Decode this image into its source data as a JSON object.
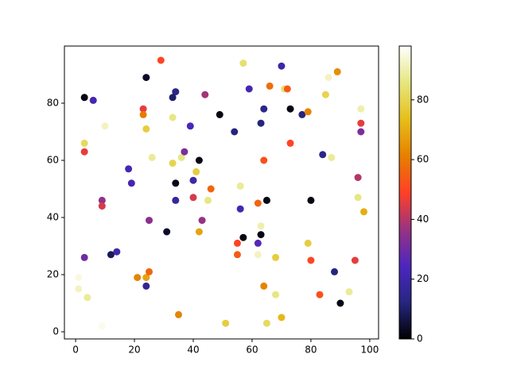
{
  "chart_data": {
    "type": "scatter",
    "x": [
      3,
      6,
      10,
      3,
      3,
      9,
      9,
      3,
      1,
      1,
      4,
      9,
      12,
      14,
      18,
      19,
      24,
      29,
      23,
      23,
      24,
      26,
      25,
      21,
      24,
      25,
      24,
      31,
      34,
      33,
      33,
      33,
      36,
      37,
      34,
      34,
      39,
      44,
      42,
      41,
      40,
      40,
      45,
      46,
      43,
      42,
      35,
      51,
      49,
      54,
      57,
      59,
      56,
      56,
      55,
      55,
      57,
      63,
      62,
      63,
      62,
      62,
      65,
      64,
      64,
      63,
      64,
      66,
      70,
      71,
      72,
      73,
      73,
      77,
      79,
      68,
      68,
      65,
      70,
      79,
      80,
      80,
      84,
      86,
      85,
      87,
      89,
      88,
      83,
      90,
      93,
      96,
      96,
      97,
      97,
      97,
      98,
      95
    ],
    "y": [
      82,
      81,
      72,
      66,
      63,
      46,
      44,
      26,
      19,
      15,
      12,
      2,
      27,
      28,
      57,
      52,
      89,
      95,
      78,
      76,
      71,
      61,
      39,
      19,
      19,
      21,
      16,
      35,
      84,
      82,
      75,
      59,
      61,
      63,
      52,
      46,
      72,
      83,
      60,
      56,
      53,
      47,
      46,
      50,
      39,
      35,
      6,
      3,
      76,
      70,
      94,
      85,
      51,
      43,
      31,
      27,
      33,
      34,
      45,
      37,
      27,
      31,
      46,
      60,
      16,
      73,
      78,
      86,
      93,
      85,
      85,
      78,
      66,
      76,
      77,
      26,
      13,
      3,
      5,
      31,
      46,
      25,
      62,
      89,
      83,
      61,
      91,
      21,
      13,
      10,
      14,
      54,
      47,
      73,
      70,
      78,
      42,
      25
    ],
    "c": [
      2,
      22,
      92,
      82,
      46,
      36,
      44,
      30,
      95,
      92,
      88,
      96,
      8,
      20,
      22,
      22,
      4,
      50,
      46,
      60,
      78,
      88,
      34,
      62,
      68,
      56,
      16,
      4,
      14,
      10,
      86,
      80,
      86,
      32,
      2,
      18,
      24,
      38,
      2,
      78,
      20,
      44,
      86,
      56,
      36,
      68,
      62,
      78,
      2,
      12,
      84,
      22,
      88,
      22,
      50,
      54,
      2,
      2,
      56,
      90,
      92,
      26,
      2,
      52,
      62,
      12,
      14,
      58,
      20,
      84,
      54,
      2,
      50,
      12,
      62,
      78,
      86,
      82,
      72,
      78,
      2,
      50,
      14,
      92,
      80,
      88,
      64,
      12,
      52,
      2,
      88,
      40,
      86,
      46,
      32,
      90,
      70,
      46
    ],
    "colormap": [
      "#000000",
      "#262680",
      "#4d26bf",
      "#993380",
      "#ff4026",
      "#e68000",
      "#e6bf1a",
      "#e6e680",
      "#ffffff"
    ],
    "clim": [
      0,
      98
    ],
    "cticks": [
      0,
      20,
      40,
      60,
      80
    ],
    "xlim": [
      -3.8,
      103
    ],
    "ylim": [
      -2.5,
      100
    ],
    "xticks": [
      0,
      20,
      40,
      60,
      80,
      100
    ],
    "yticks": [
      0,
      20,
      40,
      60,
      80
    ]
  }
}
